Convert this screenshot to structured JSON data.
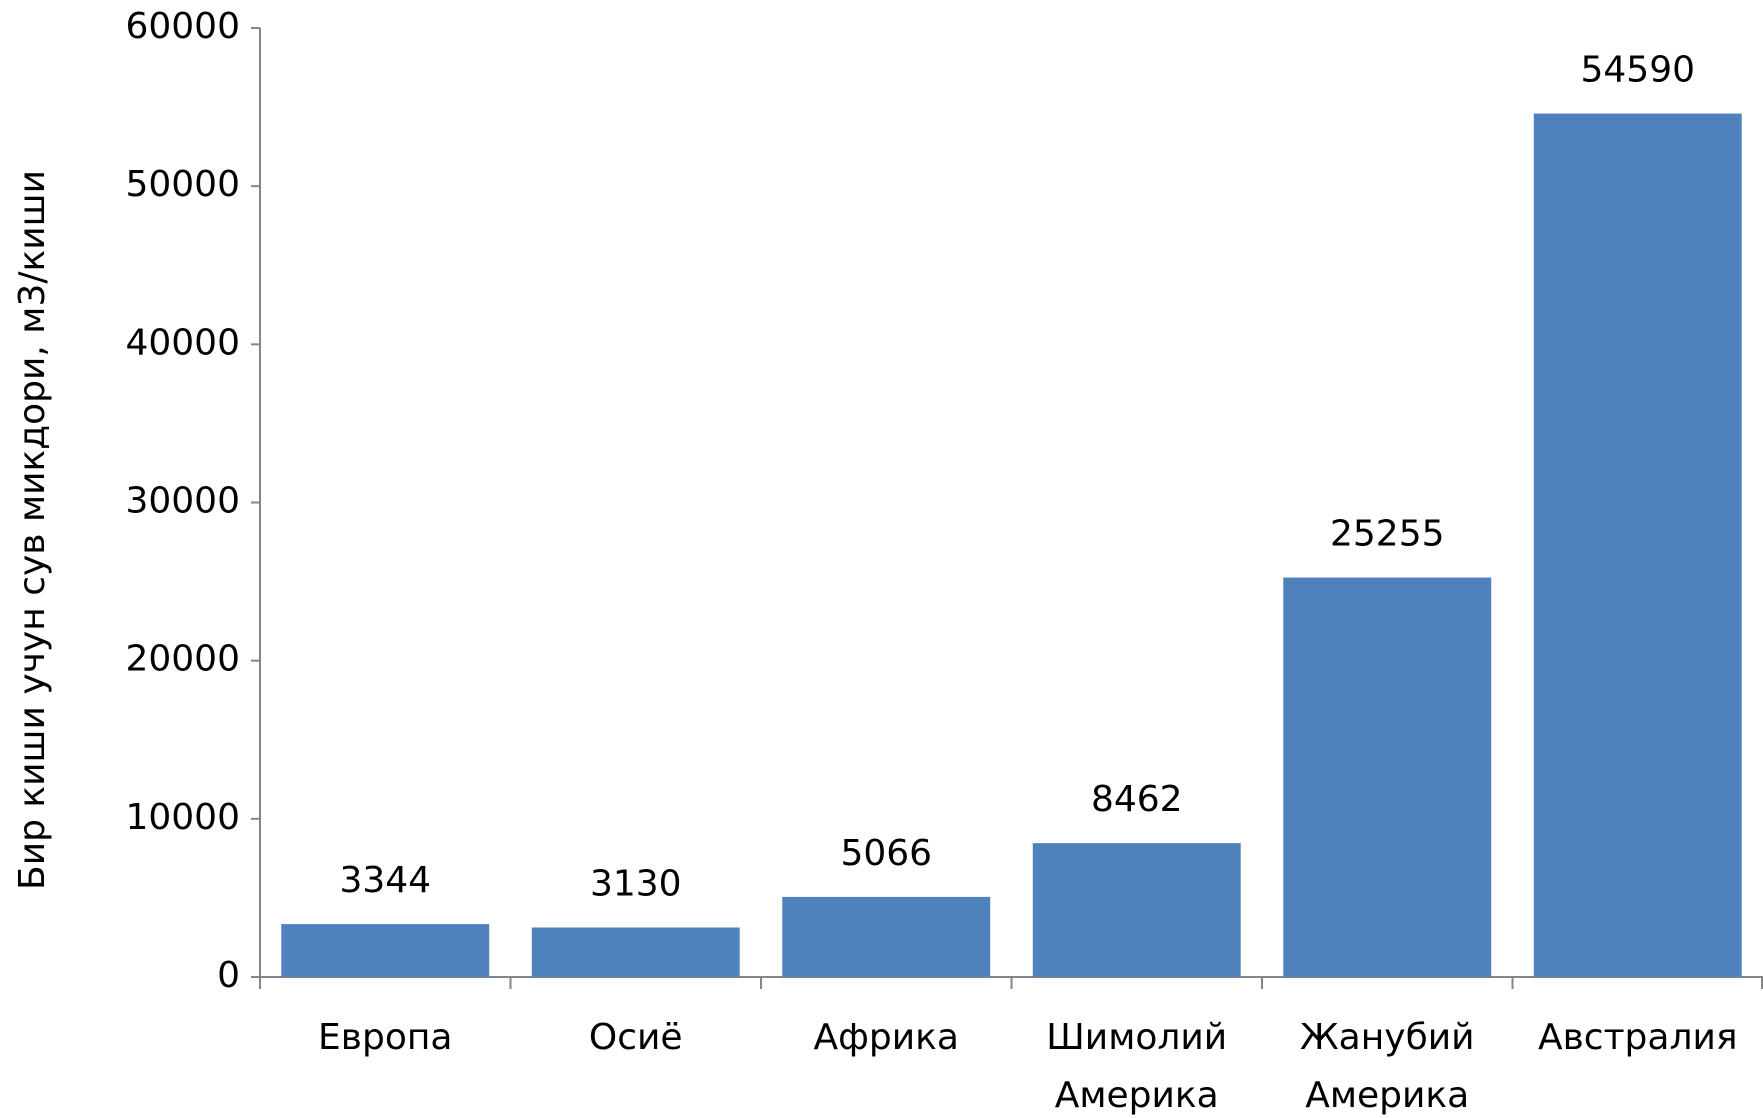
{
  "chart_data": {
    "type": "bar",
    "ylabel": "Бир киши учун сув микдори, м3/киши",
    "categories": [
      "Европа",
      "Осиё",
      "Африка",
      "Шимолий Америка",
      "Жанубий Америка",
      "Австралия"
    ],
    "values": [
      3344,
      3130,
      5066,
      8462,
      25255,
      54590
    ],
    "color": "#4f81bd",
    "ylim": [
      0,
      60000
    ],
    "yticks": [
      0,
      10000,
      20000,
      30000,
      40000,
      50000,
      60000
    ],
    "grid": false
  }
}
